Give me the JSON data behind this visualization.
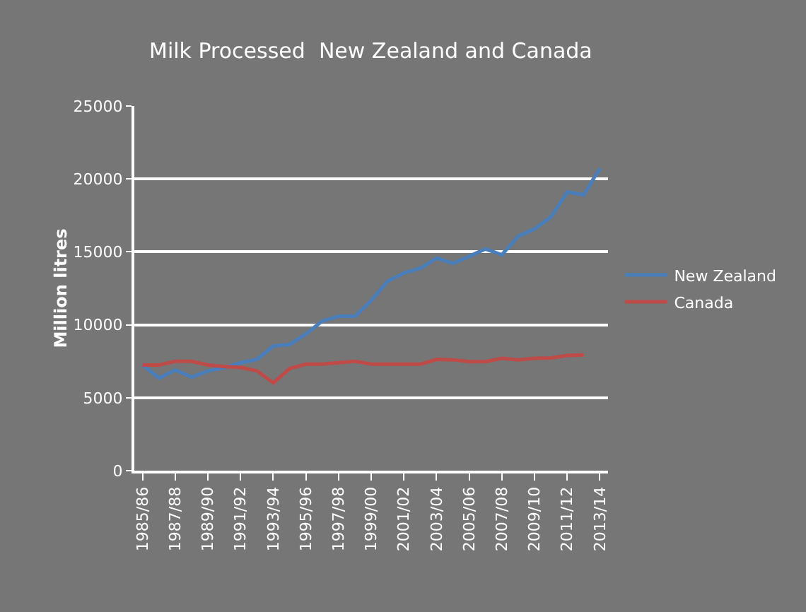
{
  "chart_data": {
    "type": "line",
    "title": "Milk Processed  New Zealand and Canada",
    "ylabel": "Million litres",
    "categories": [
      "1985/86",
      null,
      "1987/88",
      null,
      "1989/90",
      null,
      "1991/92",
      null,
      "1993/94",
      null,
      "1995/96",
      null,
      "1997/98",
      null,
      "1999/00",
      null,
      "2001/02",
      null,
      "2003/04",
      null,
      "2005/06",
      null,
      "2007/08",
      null,
      "2009/10",
      null,
      "2011/12",
      null,
      "2013/14"
    ],
    "series": [
      {
        "name": "New Zealand",
        "color": "#4a7ebb",
        "values": [
          7240,
          6350,
          6900,
          6420,
          6840,
          7070,
          7400,
          7630,
          8550,
          8650,
          9380,
          10260,
          10590,
          10590,
          11680,
          13000,
          13550,
          13880,
          14570,
          14210,
          14700,
          15200,
          14800,
          16080,
          16580,
          17400,
          19110,
          18910,
          20720
        ]
      },
      {
        "name": "Canada",
        "color": "#be4b48",
        "values": [
          7240,
          7240,
          7500,
          7500,
          7240,
          7140,
          7070,
          6840,
          6020,
          7000,
          7300,
          7300,
          7400,
          7500,
          7300,
          7300,
          7300,
          7300,
          7630,
          7600,
          7470,
          7470,
          7700,
          7600,
          7700,
          7730,
          7900,
          7930,
          null
        ]
      }
    ],
    "ylim": [
      0,
      25000
    ],
    "yticks": [
      0,
      5000,
      10000,
      15000,
      20000,
      25000
    ],
    "grid": "y",
    "legend": "right",
    "marker": "none",
    "line_style": "solid"
  }
}
